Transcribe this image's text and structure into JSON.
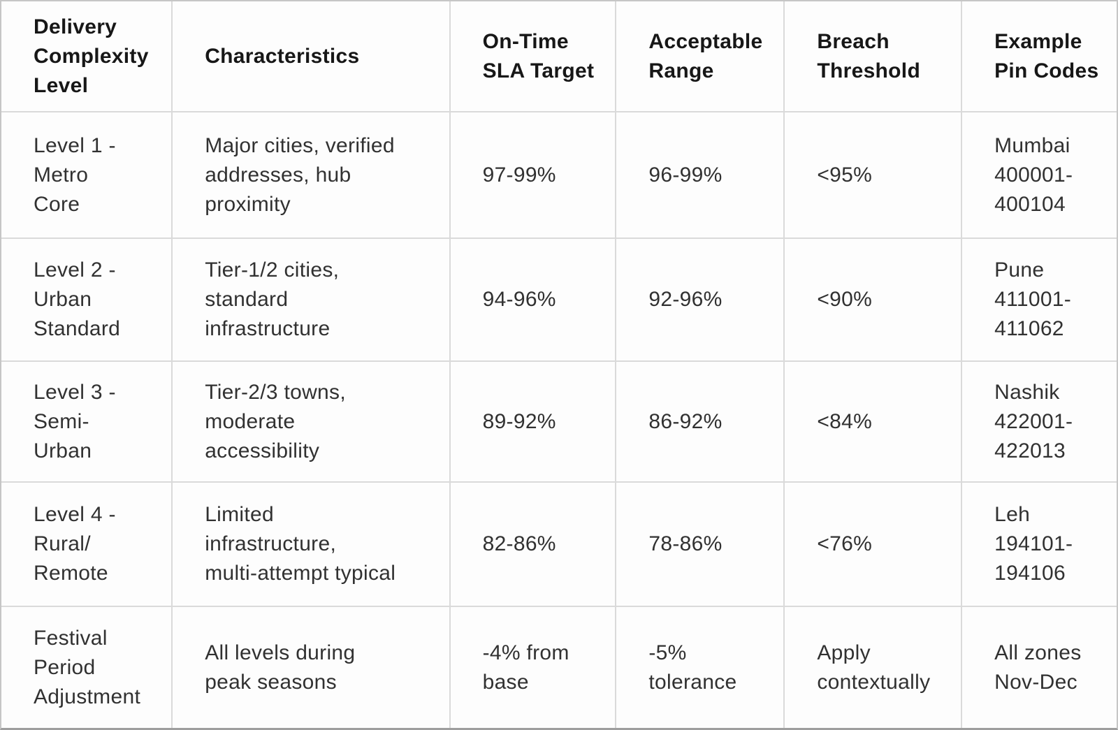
{
  "colors": {
    "cell_background": "#fdfdfd",
    "grid_line": "#dadada",
    "outer_border": "#c6c6c6",
    "outer_border_bottom": "#9e9e9e",
    "header_text": "#171717",
    "body_text": "#313131"
  },
  "table": {
    "columns": {
      "level": "Delivery\nComplexity\nLevel",
      "characteristics": "Characteristics",
      "sla_target": "On-Time\nSLA Target",
      "acceptable_range": "Acceptable\nRange",
      "breach_threshold": "Breach\nThreshold",
      "example_pins": "Example\nPin Codes"
    },
    "rows": [
      {
        "level": "Level 1 -\nMetro\nCore",
        "characteristics": "Major cities, verified\naddresses, hub\nproximity",
        "sla_target": "97-99%",
        "acceptable_range": "96-99%",
        "breach_threshold": "<95%",
        "example_pins": "Mumbai\n400001-\n400104"
      },
      {
        "level": "Level 2 -\nUrban\nStandard",
        "characteristics": "Tier-1/2 cities,\nstandard\ninfrastructure",
        "sla_target": "94-96%",
        "acceptable_range": "92-96%",
        "breach_threshold": "<90%",
        "example_pins": "Pune\n411001-\n411062"
      },
      {
        "level": "Level 3 -\nSemi-\nUrban",
        "characteristics": "Tier-2/3 towns,\nmoderate\naccessibility",
        "sla_target": "89-92%",
        "acceptable_range": "86-92%",
        "breach_threshold": "<84%",
        "example_pins": "Nashik\n422001-\n422013"
      },
      {
        "level": "Level 4 -\nRural/\nRemote",
        "characteristics": "Limited\ninfrastructure,\nmulti-attempt typical",
        "sla_target": "82-86%",
        "acceptable_range": "78-86%",
        "breach_threshold": "<76%",
        "example_pins": "Leh\n194101-\n194106"
      },
      {
        "level": "Festival\nPeriod\nAdjustment",
        "characteristics": "All levels during\npeak seasons",
        "sla_target": "-4% from\nbase",
        "acceptable_range": "-5%\ntolerance",
        "breach_threshold": "Apply\ncontextually",
        "example_pins": "All zones\nNov-Dec"
      }
    ]
  }
}
